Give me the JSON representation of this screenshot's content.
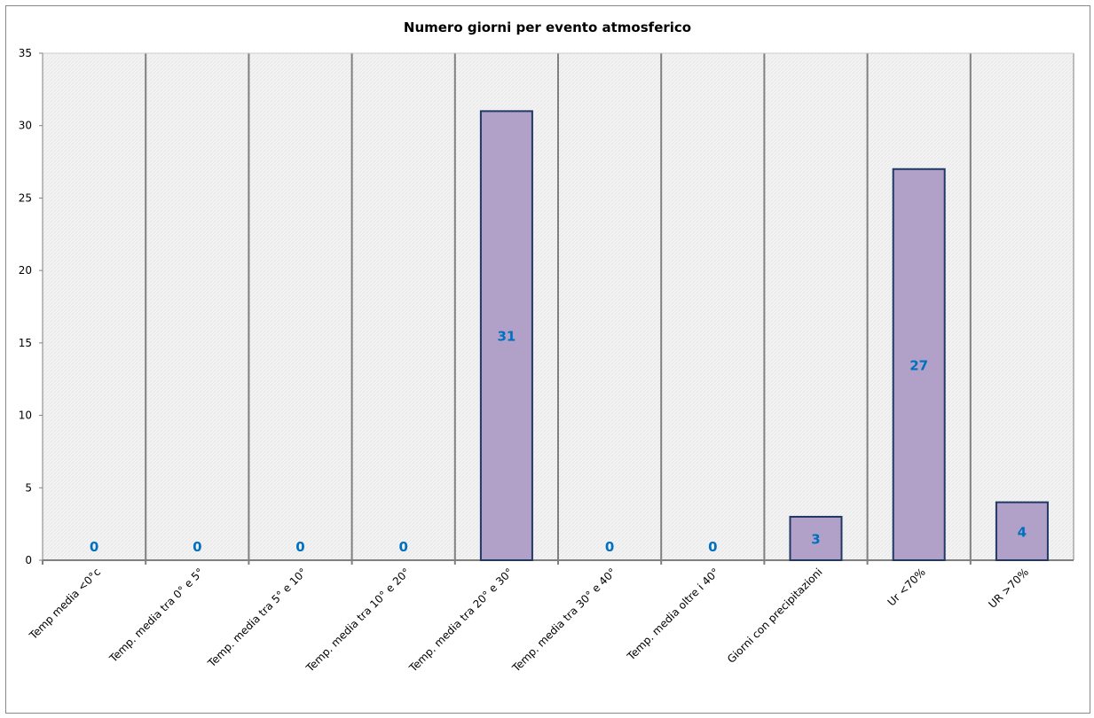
{
  "chart_data": {
    "type": "bar",
    "title": "Numero giorni  per evento atmosferico",
    "xlabel": "",
    "ylabel": "",
    "ylim": [
      0,
      35
    ],
    "yticks": [
      0,
      5,
      10,
      15,
      20,
      25,
      30,
      35
    ],
    "categories": [
      "Temp media <0°c",
      "Temp. media tra 0° e 5°",
      "Temp. media tra 5° e 10°",
      "Temp. media tra 10° e 20°",
      "Temp. media tra 20° e 30°",
      "Temp. media tra 30° e 40°",
      "Temp. media oltre i 40°",
      "Giorni con precipitazioni",
      "Ur  <70%",
      "UR >70%"
    ],
    "values": [
      0,
      0,
      0,
      0,
      31,
      0,
      0,
      3,
      27,
      4
    ],
    "grid": "vertical category separators",
    "legend": "none",
    "colors": {
      "bar": "#b1a1c8",
      "bar_border": "#1f3864",
      "label": "#0070c0",
      "plot_bg": "#f4f4f4",
      "grid": "#808080"
    }
  }
}
